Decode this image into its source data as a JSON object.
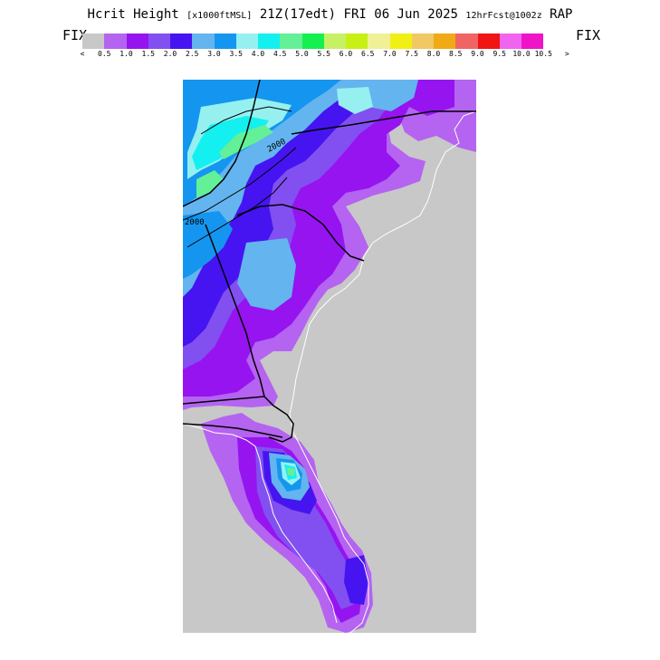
{
  "title": {
    "main": "Hcrit Height",
    "units": "[x1000ftMSL]",
    "valid": "21Z(17edt)",
    "date": "FRI 06 Jun 2025",
    "forecast": "12hrFcst@1002z",
    "model": "RAP"
  },
  "legend": {
    "fix_left": "FIX",
    "fix_right": "FIX",
    "colors": [
      "#c8c8c8",
      "#b464f0",
      "#9614f0",
      "#8250f0",
      "#4614f0",
      "#64b4f0",
      "#1496f0",
      "#96f0f0",
      "#14f0f0",
      "#64f096",
      "#14f050",
      "#c8f064",
      "#c8f014",
      "#f0f096",
      "#f0f014",
      "#f0c864",
      "#f0aa14",
      "#f06464",
      "#f01414",
      "#f064f0",
      "#f014c8"
    ],
    "tick_labels": [
      "<",
      "0.5",
      "1.0",
      "1.5",
      "2.0",
      "2.5",
      "3.0",
      "3.5",
      "4.0",
      "4.5",
      "5.0",
      "5.5",
      "6.0",
      "6.5",
      "7.0",
      "7.5",
      "8.0",
      "8.5",
      "9.0",
      "9.5",
      "10.0",
      "10.5",
      ">"
    ]
  },
  "map": {
    "contour_labels": [
      "2000",
      "2000"
    ],
    "land_color": "#c8c8c8",
    "border_color": "#000000",
    "coast_color": "#ffffff"
  }
}
